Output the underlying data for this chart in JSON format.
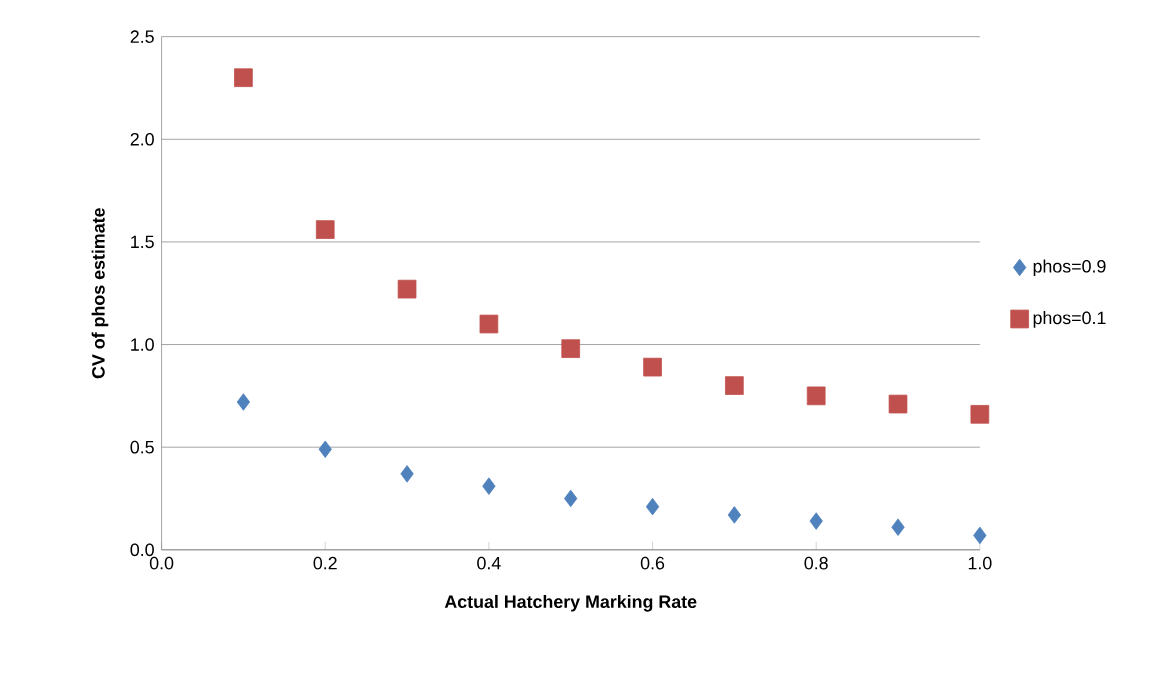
{
  "chart_data": {
    "type": "scatter",
    "xlabel": "Actual Hatchery Marking Rate",
    "ylabel": "CV of phos estimate",
    "x": [
      0.1,
      0.2,
      0.3,
      0.4,
      0.5,
      0.6,
      0.7,
      0.8,
      0.9,
      1.0
    ],
    "series": [
      {
        "name": "phos=0.9",
        "color": "#4f81bd",
        "marker": "diamond",
        "values": [
          0.72,
          0.49,
          0.37,
          0.31,
          0.25,
          0.21,
          0.17,
          0.14,
          0.11,
          0.07
        ]
      },
      {
        "name": "phos=0.1",
        "color": "#c0504d",
        "marker": "square",
        "values": [
          2.3,
          1.56,
          1.27,
          1.1,
          0.98,
          0.89,
          0.8,
          0.75,
          0.71,
          0.66
        ]
      }
    ],
    "xlim": [
      0,
      1
    ],
    "xticks": [
      {
        "value": 0,
        "label": "0.0"
      },
      0.2,
      0.4,
      0.6,
      0.8,
      {
        "value": 1,
        "label": "1.0"
      }
    ],
    "ylim": [
      0,
      2.5
    ],
    "yticks": [
      {
        "value": 0,
        "label": "0.0"
      },
      0.5,
      {
        "value": 1,
        "label": "1.0"
      },
      1.5,
      {
        "value": 2,
        "label": "2.0"
      },
      2.5
    ],
    "grid": "y",
    "legend": "right"
  }
}
